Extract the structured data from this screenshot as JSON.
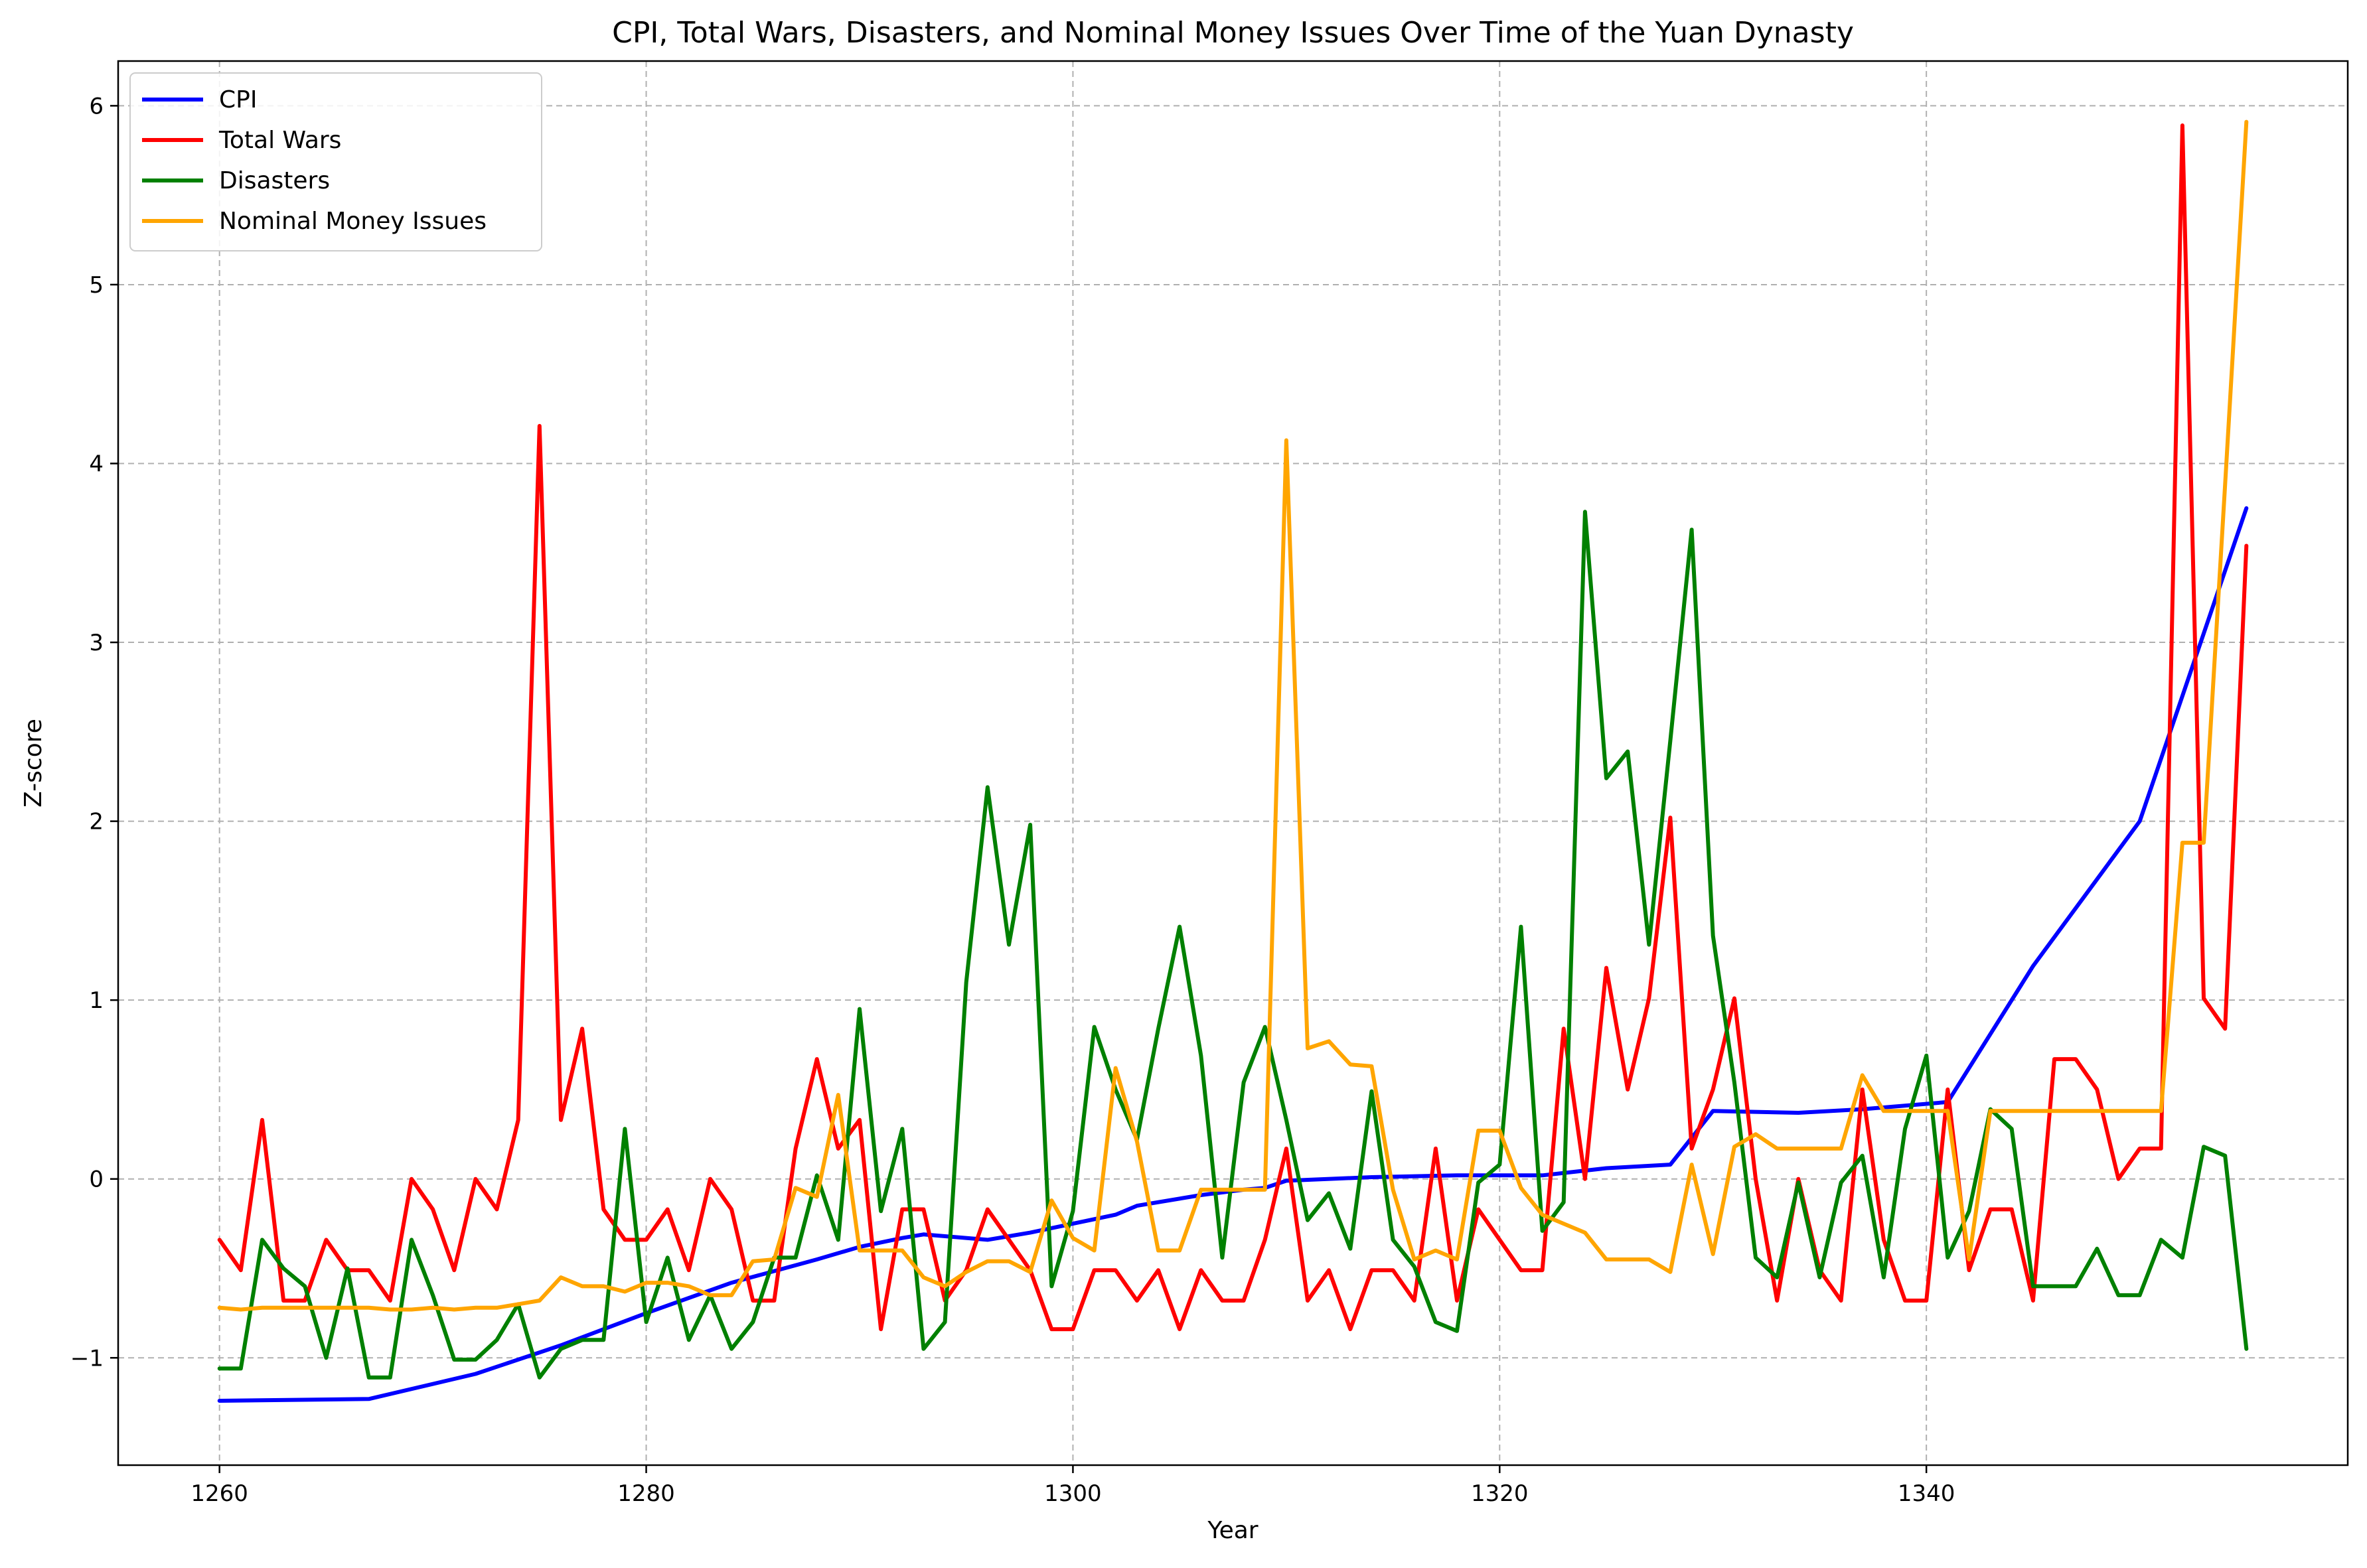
{
  "chart_data": {
    "type": "line",
    "title": "CPI, Total Wars, Disasters, and Nominal Money Issues Over Time of the Yuan Dynasty",
    "xlabel": "Year",
    "ylabel": "Z-score",
    "xlim": [
      1255.25,
      1359.75
    ],
    "ylim": [
      -1.6,
      6.25
    ],
    "x_ticks": [
      1260,
      1280,
      1300,
      1320,
      1340
    ],
    "x_tick_labels": [
      "1260",
      "1280",
      "1300",
      "1320",
      "1340"
    ],
    "y_ticks": [
      -1,
      0,
      1,
      2,
      3,
      4,
      5,
      6
    ],
    "y_tick_labels": [
      "−1",
      "0",
      "1",
      "2",
      "3",
      "4",
      "5",
      "6"
    ],
    "grid": true,
    "legend_position": "top-left",
    "series": [
      {
        "name": "CPI",
        "color": "#0000ff",
        "x": [
          1260,
          1267,
          1272,
          1276,
          1280,
          1284,
          1288,
          1290,
          1292,
          1293,
          1296,
          1298,
          1300,
          1302,
          1303,
          1306,
          1308,
          1309,
          1310,
          1314,
          1318,
          1322,
          1325,
          1328,
          1330,
          1334,
          1337,
          1341,
          1345,
          1350,
          1355
        ],
        "values": [
          -1.24,
          -1.23,
          -1.09,
          -0.93,
          -0.75,
          -0.58,
          -0.45,
          -0.38,
          -0.33,
          -0.31,
          -0.34,
          -0.3,
          -0.25,
          -0.2,
          -0.15,
          -0.09,
          -0.06,
          -0.05,
          -0.01,
          0.01,
          0.02,
          0.02,
          0.06,
          0.08,
          0.38,
          0.37,
          0.39,
          0.43,
          1.19,
          2.0,
          3.75
        ]
      },
      {
        "name": "Total Wars",
        "color": "#ff0000",
        "x": [
          1260,
          1261,
          1262,
          1263,
          1264,
          1265,
          1266,
          1267,
          1268,
          1269,
          1270,
          1271,
          1272,
          1273,
          1274,
          1275,
          1276,
          1277,
          1278,
          1279,
          1280,
          1281,
          1282,
          1283,
          1284,
          1285,
          1286,
          1287,
          1288,
          1289,
          1290,
          1291,
          1292,
          1293,
          1294,
          1295,
          1296,
          1297,
          1298,
          1299,
          1300,
          1301,
          1302,
          1303,
          1304,
          1305,
          1306,
          1307,
          1308,
          1309,
          1310,
          1311,
          1312,
          1313,
          1314,
          1315,
          1316,
          1317,
          1318,
          1319,
          1320,
          1321,
          1322,
          1323,
          1324,
          1325,
          1326,
          1327,
          1328,
          1329,
          1330,
          1331,
          1332,
          1333,
          1334,
          1335,
          1336,
          1337,
          1338,
          1339,
          1340,
          1341,
          1342,
          1343,
          1344,
          1345,
          1346,
          1347,
          1348,
          1349,
          1350,
          1351,
          1352,
          1353,
          1354,
          1355
        ],
        "values": [
          -0.34,
          -0.51,
          0.33,
          -0.68,
          -0.68,
          -0.34,
          -0.51,
          -0.51,
          -0.68,
          0.0,
          -0.17,
          -0.51,
          0.0,
          -0.17,
          0.33,
          4.21,
          0.33,
          0.84,
          -0.17,
          -0.34,
          -0.34,
          -0.17,
          -0.51,
          0.0,
          -0.17,
          -0.68,
          -0.68,
          0.17,
          0.67,
          0.17,
          0.33,
          -0.84,
          -0.17,
          -0.17,
          -0.68,
          -0.51,
          -0.17,
          -0.34,
          -0.51,
          -0.84,
          -0.84,
          -0.51,
          -0.51,
          -0.68,
          -0.51,
          -0.84,
          -0.51,
          -0.68,
          -0.68,
          -0.34,
          0.17,
          -0.68,
          -0.51,
          -0.84,
          -0.51,
          -0.51,
          -0.68,
          0.17,
          -0.68,
          -0.17,
          -0.34,
          -0.51,
          -0.51,
          0.84,
          0.0,
          1.18,
          0.5,
          1.01,
          2.02,
          0.17,
          0.5,
          1.01,
          0.0,
          -0.68,
          0.0,
          -0.51,
          -0.68,
          0.5,
          -0.34,
          -0.68,
          -0.68,
          0.5,
          -0.51,
          -0.17,
          -0.17,
          -0.68,
          0.67,
          0.67,
          0.5,
          0.0,
          0.17,
          0.17,
          5.89,
          1.01,
          0.84,
          3.54
        ]
      },
      {
        "name": "Disasters",
        "color": "#008000",
        "x": [
          1260,
          1261,
          1262,
          1263,
          1264,
          1265,
          1266,
          1267,
          1268,
          1269,
          1270,
          1271,
          1272,
          1273,
          1274,
          1275,
          1276,
          1277,
          1278,
          1279,
          1280,
          1281,
          1282,
          1283,
          1284,
          1285,
          1286,
          1287,
          1288,
          1289,
          1290,
          1291,
          1292,
          1293,
          1294,
          1295,
          1296,
          1297,
          1298,
          1299,
          1300,
          1301,
          1302,
          1303,
          1304,
          1305,
          1306,
          1307,
          1308,
          1309,
          1310,
          1311,
          1312,
          1313,
          1314,
          1315,
          1316,
          1317,
          1318,
          1319,
          1320,
          1321,
          1322,
          1323,
          1324,
          1325,
          1326,
          1327,
          1328,
          1329,
          1330,
          1331,
          1332,
          1333,
          1334,
          1335,
          1336,
          1337,
          1338,
          1339,
          1340,
          1341,
          1342,
          1343,
          1344,
          1345,
          1346,
          1347,
          1348,
          1349,
          1350,
          1351,
          1352,
          1353,
          1354,
          1355
        ],
        "values": [
          -1.06,
          -1.06,
          -0.34,
          -0.5,
          -0.6,
          -1.0,
          -0.5,
          -1.11,
          -1.11,
          -0.34,
          -0.65,
          -1.01,
          -1.01,
          -0.9,
          -0.7,
          -1.11,
          -0.95,
          -0.9,
          -0.9,
          0.28,
          -0.8,
          -0.44,
          -0.9,
          -0.65,
          -0.95,
          -0.8,
          -0.44,
          -0.44,
          0.02,
          -0.34,
          0.95,
          -0.18,
          0.28,
          -0.95,
          -0.8,
          1.1,
          2.19,
          1.31,
          1.98,
          -0.6,
          -0.18,
          0.85,
          0.5,
          0.22,
          0.84,
          1.41,
          0.69,
          -0.44,
          0.54,
          0.85,
          0.33,
          -0.23,
          -0.08,
          -0.39,
          0.49,
          -0.34,
          -0.49,
          -0.8,
          -0.85,
          -0.02,
          0.08,
          1.41,
          -0.29,
          -0.13,
          3.73,
          2.24,
          2.39,
          1.31,
          2.45,
          3.63,
          1.36,
          0.54,
          -0.44,
          -0.55,
          -0.02,
          -0.55,
          -0.02,
          0.13,
          -0.55,
          0.28,
          0.69,
          -0.44,
          -0.18,
          0.39,
          0.28,
          -0.6,
          -0.6,
          -0.6,
          -0.39,
          -0.65,
          -0.65,
          -0.34,
          -0.44,
          0.18,
          0.13,
          -0.95
        ]
      },
      {
        "name": "Nominal Money Issues",
        "color": "#ffa500",
        "x": [
          1260,
          1261,
          1262,
          1263,
          1264,
          1265,
          1266,
          1267,
          1268,
          1269,
          1270,
          1271,
          1272,
          1273,
          1274,
          1275,
          1276,
          1277,
          1278,
          1279,
          1280,
          1281,
          1282,
          1283,
          1284,
          1285,
          1286,
          1287,
          1288,
          1289,
          1290,
          1291,
          1292,
          1293,
          1294,
          1295,
          1296,
          1297,
          1298,
          1299,
          1300,
          1301,
          1302,
          1303,
          1304,
          1305,
          1306,
          1307,
          1308,
          1309,
          1310,
          1311,
          1312,
          1313,
          1314,
          1315,
          1316,
          1317,
          1318,
          1319,
          1320,
          1321,
          1322,
          1323,
          1324,
          1325,
          1326,
          1327,
          1328,
          1329,
          1330,
          1331,
          1332,
          1333,
          1334,
          1335,
          1336,
          1337,
          1338,
          1339,
          1340,
          1341,
          1342,
          1343,
          1344,
          1345,
          1346,
          1347,
          1348,
          1349,
          1350,
          1351,
          1352,
          1353,
          1354,
          1355
        ],
        "values": [
          -0.72,
          -0.73,
          -0.72,
          -0.72,
          -0.72,
          -0.72,
          -0.72,
          -0.72,
          -0.73,
          -0.73,
          -0.72,
          -0.73,
          -0.72,
          -0.72,
          -0.7,
          -0.68,
          -0.55,
          -0.6,
          -0.6,
          -0.63,
          -0.58,
          -0.58,
          -0.6,
          -0.65,
          -0.65,
          -0.46,
          -0.45,
          -0.05,
          -0.1,
          0.47,
          -0.4,
          -0.4,
          -0.4,
          -0.55,
          -0.6,
          -0.52,
          -0.46,
          -0.46,
          -0.52,
          -0.12,
          -0.33,
          -0.4,
          0.62,
          0.21,
          -0.4,
          -0.4,
          -0.06,
          -0.06,
          -0.06,
          -0.06,
          4.13,
          0.73,
          0.77,
          0.64,
          0.63,
          -0.06,
          -0.45,
          -0.4,
          -0.45,
          0.27,
          0.27,
          -0.05,
          -0.2,
          -0.25,
          -0.3,
          -0.45,
          -0.45,
          -0.45,
          -0.52,
          0.08,
          -0.42,
          0.18,
          0.25,
          0.17,
          0.17,
          0.17,
          0.17,
          0.58,
          0.38,
          0.38,
          0.38,
          0.38,
          -0.45,
          0.38,
          0.38,
          0.38,
          0.38,
          0.38,
          0.38,
          0.38,
          0.38,
          0.38,
          1.88,
          1.88,
          3.88,
          5.91
        ]
      }
    ]
  }
}
